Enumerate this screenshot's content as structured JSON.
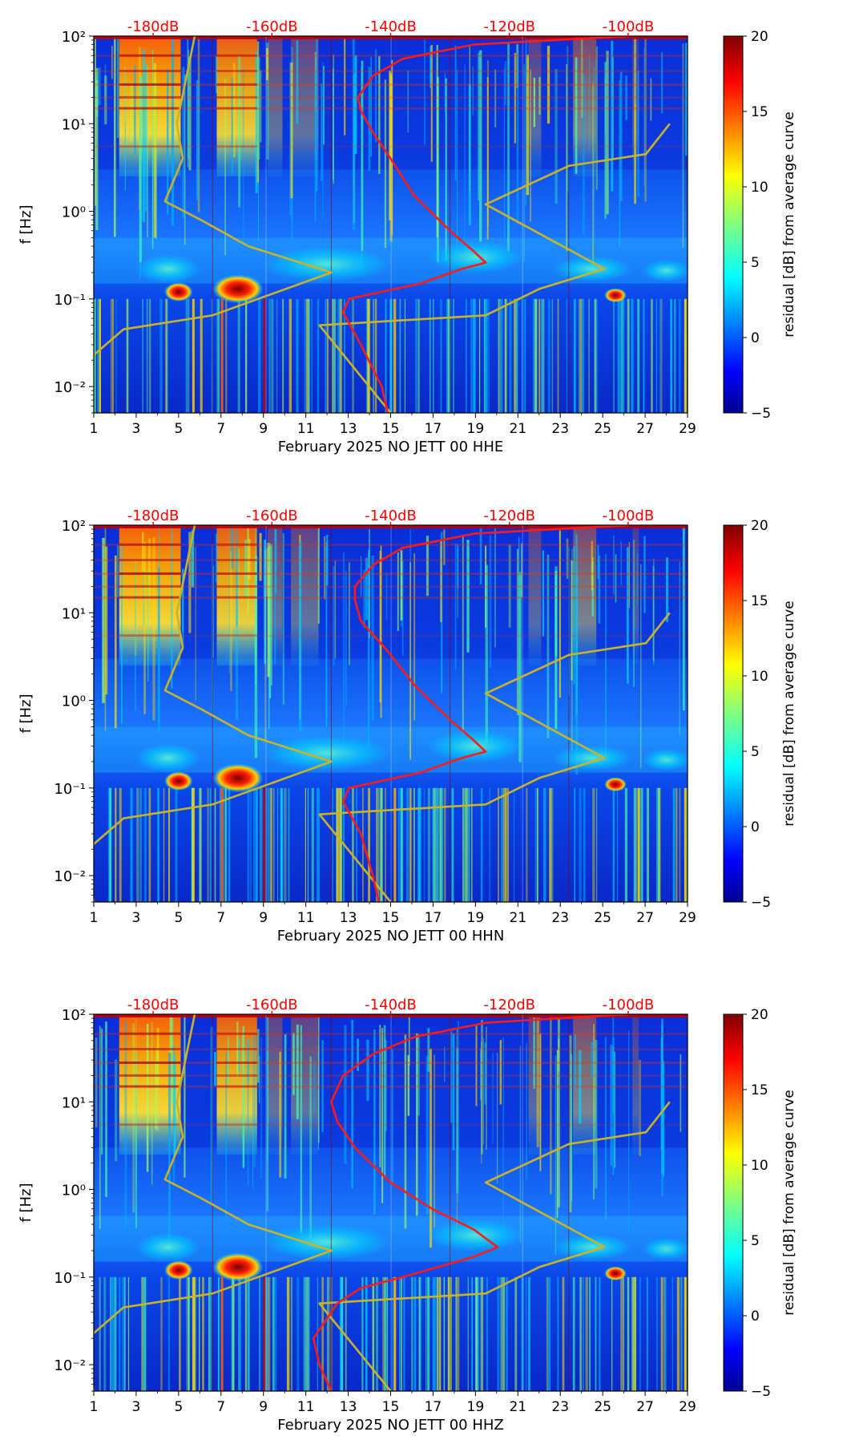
{
  "figure": {
    "background": "#ffffff"
  },
  "chart_data": [
    {
      "type": "heatmap",
      "xlabel": "February 2025 NO JETT 00 HHE",
      "ylabel": "f [Hz]",
      "x_ticks": [
        "1",
        "3",
        "5",
        "7",
        "9",
        "11",
        "13",
        "15",
        "17",
        "19",
        "21",
        "23",
        "25",
        "27",
        "29"
      ],
      "x_range": [
        1,
        29
      ],
      "y_ticks": [
        "10⁻²",
        "10⁻¹",
        "10⁰",
        "10¹",
        "10²"
      ],
      "y_range_hz": [
        0.005,
        100
      ],
      "y_scale": "log",
      "db_labels": [
        "-180dB",
        "-160dB",
        "-140dB",
        "-120dB",
        "-100dB"
      ],
      "db_range": [
        -190,
        -90
      ],
      "colorbar": {
        "label": "residual [dB] from average curve",
        "ticks": [
          "20",
          "15",
          "10",
          "5",
          "0",
          "−5"
        ],
        "range": [
          -5,
          20
        ],
        "colormap": "jet"
      },
      "red_curve": {
        "name": "average spectrum",
        "color": "#ff1a1a",
        "points": [
          [
            -140.5,
            0.005
          ],
          [
            -141.5,
            0.01
          ],
          [
            -145,
            0.03
          ],
          [
            -148,
            0.07
          ],
          [
            -147,
            0.1
          ],
          [
            -135,
            0.15
          ],
          [
            -128,
            0.22
          ],
          [
            -124,
            0.26
          ],
          [
            -126,
            0.35
          ],
          [
            -130,
            0.6
          ],
          [
            -136,
            1.5
          ],
          [
            -140,
            4
          ],
          [
            -143,
            8
          ],
          [
            -145,
            14
          ],
          [
            -145.5,
            20
          ],
          [
            -143,
            35
          ],
          [
            -138,
            55
          ],
          [
            -126,
            80
          ],
          [
            -100,
            100
          ]
        ]
      },
      "yellow_curve": {
        "name": "noise model",
        "color": "#c8b42a",
        "points": [
          [
            -190,
            0.005
          ],
          [
            -191,
            0.02
          ],
          [
            -185,
            0.045
          ],
          [
            -170,
            0.065
          ],
          [
            -150,
            0.2
          ],
          [
            -164,
            0.4
          ],
          [
            -172,
            0.8
          ],
          [
            -178,
            1.3
          ],
          [
            -175,
            4
          ],
          [
            -176,
            10
          ],
          [
            -173,
            100
          ]
        ]
      },
      "yellow_curve2": {
        "name": "high noise model",
        "color": "#c8b42a",
        "points": [
          [
            -140,
            0.005
          ],
          [
            -152,
            0.05
          ],
          [
            -124,
            0.065
          ],
          [
            -115,
            0.13
          ],
          [
            -104,
            0.22
          ],
          [
            -124,
            1.2
          ],
          [
            -110,
            3.3
          ],
          [
            -97,
            4.5
          ],
          [
            -93,
            10
          ]
        ]
      }
    },
    {
      "type": "heatmap",
      "xlabel": "February 2025 NO JETT 00 HHN",
      "ylabel": "f [Hz]",
      "x_ticks": [
        "1",
        "3",
        "5",
        "7",
        "9",
        "11",
        "13",
        "15",
        "17",
        "19",
        "21",
        "23",
        "25",
        "27",
        "29"
      ],
      "x_range": [
        1,
        29
      ],
      "y_ticks": [
        "10⁻²",
        "10⁻¹",
        "10⁰",
        "10¹",
        "10²"
      ],
      "y_range_hz": [
        0.005,
        100
      ],
      "y_scale": "log",
      "db_labels": [
        "-180dB",
        "-160dB",
        "-140dB",
        "-120dB",
        "-100dB"
      ],
      "db_range": [
        -190,
        -90
      ],
      "colorbar": {
        "label": "residual [dB] from average curve",
        "ticks": [
          "20",
          "15",
          "10",
          "5",
          "0",
          "−5"
        ],
        "range": [
          -5,
          20
        ],
        "colormap": "jet"
      },
      "red_curve": {
        "name": "average spectrum",
        "color": "#ff1a1a",
        "points": [
          [
            -142,
            0.005
          ],
          [
            -143,
            0.01
          ],
          [
            -145,
            0.03
          ],
          [
            -148,
            0.07
          ],
          [
            -147,
            0.1
          ],
          [
            -135,
            0.15
          ],
          [
            -128,
            0.22
          ],
          [
            -124,
            0.26
          ],
          [
            -126,
            0.35
          ],
          [
            -130,
            0.6
          ],
          [
            -136,
            1.5
          ],
          [
            -141,
            4
          ],
          [
            -145,
            8
          ],
          [
            -146,
            14
          ],
          [
            -146,
            20
          ],
          [
            -143,
            35
          ],
          [
            -138,
            55
          ],
          [
            -126,
            80
          ],
          [
            -100,
            100
          ]
        ]
      },
      "yellow_curve": {
        "name": "noise model",
        "color": "#c8b42a",
        "points": [
          [
            -190,
            0.005
          ],
          [
            -191,
            0.02
          ],
          [
            -185,
            0.045
          ],
          [
            -170,
            0.065
          ],
          [
            -150,
            0.2
          ],
          [
            -164,
            0.4
          ],
          [
            -172,
            0.8
          ],
          [
            -178,
            1.3
          ],
          [
            -175,
            4
          ],
          [
            -176,
            10
          ],
          [
            -173,
            100
          ]
        ]
      },
      "yellow_curve2": {
        "name": "high noise model",
        "color": "#c8b42a",
        "points": [
          [
            -140,
            0.005
          ],
          [
            -152,
            0.05
          ],
          [
            -124,
            0.065
          ],
          [
            -115,
            0.13
          ],
          [
            -104,
            0.22
          ],
          [
            -124,
            1.2
          ],
          [
            -110,
            3.3
          ],
          [
            -97,
            4.5
          ],
          [
            -93,
            10
          ]
        ]
      }
    },
    {
      "type": "heatmap",
      "xlabel": "February 2025 NO JETT 00 HHZ",
      "ylabel": "f [Hz]",
      "x_ticks": [
        "1",
        "3",
        "5",
        "7",
        "9",
        "11",
        "13",
        "15",
        "17",
        "19",
        "21",
        "23",
        "25",
        "27",
        "29"
      ],
      "x_range": [
        1,
        29
      ],
      "y_ticks": [
        "10⁻²",
        "10⁻¹",
        "10⁰",
        "10¹",
        "10²"
      ],
      "y_range_hz": [
        0.005,
        100
      ],
      "y_scale": "log",
      "db_labels": [
        "-180dB",
        "-160dB",
        "-140dB",
        "-120dB",
        "-100dB"
      ],
      "db_range": [
        -190,
        -90
      ],
      "colorbar": {
        "label": "residual [dB] from average curve",
        "ticks": [
          "20",
          "15",
          "10",
          "5",
          "0",
          "−5"
        ],
        "range": [
          -5,
          20
        ],
        "colormap": "jet"
      },
      "red_curve": {
        "name": "average spectrum",
        "color": "#ff1a1a",
        "points": [
          [
            -150,
            0.005
          ],
          [
            -152,
            0.01
          ],
          [
            -153,
            0.02
          ],
          [
            -149,
            0.05
          ],
          [
            -145,
            0.075
          ],
          [
            -138,
            0.1
          ],
          [
            -126,
            0.17
          ],
          [
            -122,
            0.22
          ],
          [
            -126,
            0.35
          ],
          [
            -133,
            0.6
          ],
          [
            -140,
            1.2
          ],
          [
            -146,
            3
          ],
          [
            -149,
            6
          ],
          [
            -150,
            10
          ],
          [
            -148,
            20
          ],
          [
            -143,
            35
          ],
          [
            -136,
            55
          ],
          [
            -124,
            80
          ],
          [
            -100,
            100
          ]
        ]
      },
      "yellow_curve": {
        "name": "noise model",
        "color": "#c8b42a",
        "points": [
          [
            -190,
            0.005
          ],
          [
            -191,
            0.02
          ],
          [
            -185,
            0.045
          ],
          [
            -170,
            0.065
          ],
          [
            -150,
            0.2
          ],
          [
            -164,
            0.4
          ],
          [
            -172,
            0.8
          ],
          [
            -178,
            1.3
          ],
          [
            -175,
            4
          ],
          [
            -176,
            10
          ],
          [
            -173,
            100
          ]
        ]
      },
      "yellow_curve2": {
        "name": "high noise model",
        "color": "#c8b42a",
        "points": [
          [
            -140,
            0.005
          ],
          [
            -152,
            0.05
          ],
          [
            -124,
            0.065
          ],
          [
            -115,
            0.13
          ],
          [
            -104,
            0.22
          ],
          [
            -124,
            1.2
          ],
          [
            -110,
            3.3
          ],
          [
            -97,
            4.5
          ],
          [
            -93,
            10
          ]
        ]
      }
    }
  ]
}
